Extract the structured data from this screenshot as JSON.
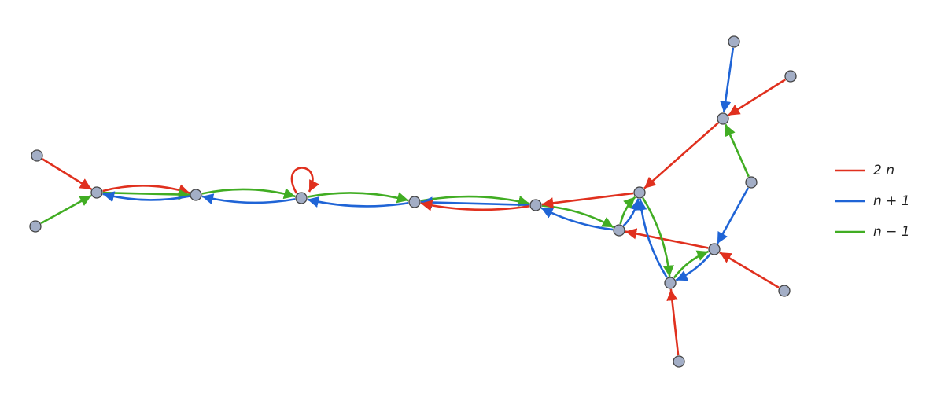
{
  "legend": [
    {
      "label": "2 n",
      "color": "#e0301e"
    },
    {
      "label": "n + 1",
      "color": "#1f64d6"
    },
    {
      "label": "n − 1",
      "color": "#41ad23"
    }
  ]
}
